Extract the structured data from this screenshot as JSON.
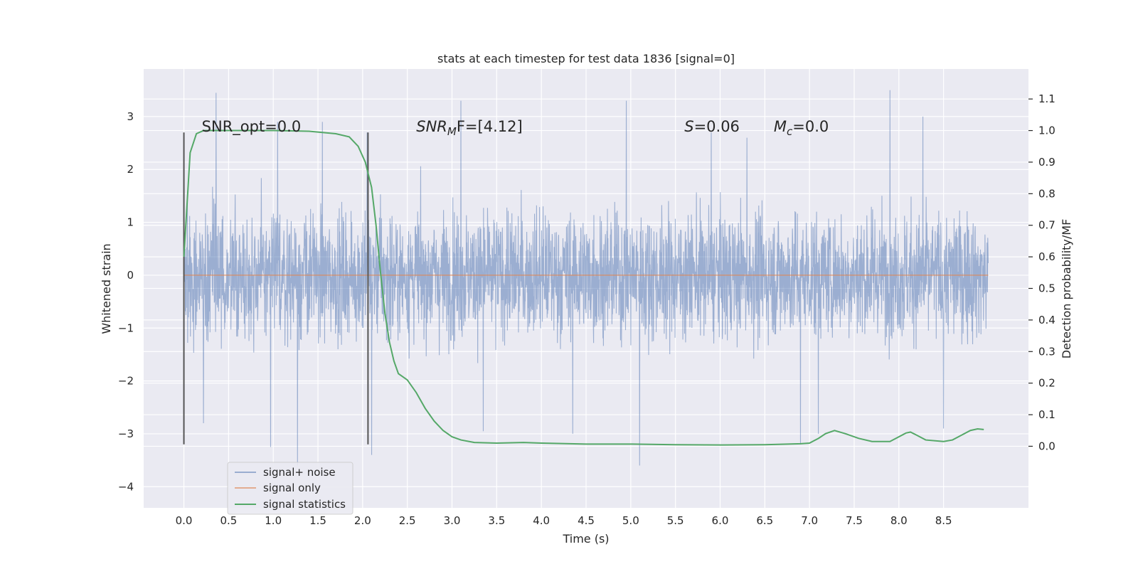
{
  "chart_data": {
    "type": "line",
    "title": "stats at each timestep for test data 1836 [signal=0]",
    "xlabel": "Time (s)",
    "ylabel": "Whitened strain",
    "y2label": "Detection probability/MF",
    "xlim": [
      -0.45,
      9.45
    ],
    "ylim": [
      -4.4,
      3.9
    ],
    "y2lim": [
      -0.195,
      1.195
    ],
    "x_ticks": [
      "0.0",
      "0.5",
      "1.0",
      "1.5",
      "2.0",
      "2.5",
      "3.0",
      "3.5",
      "4.0",
      "4.5",
      "5.0",
      "5.5",
      "6.0",
      "6.5",
      "7.0",
      "7.5",
      "8.0",
      "8.5"
    ],
    "y_ticks": [
      "3",
      "2",
      "1",
      "0",
      "−1",
      "−2",
      "−3",
      "−4"
    ],
    "y2_ticks": [
      "1.1",
      "1.0",
      "0.9",
      "0.8",
      "0.7",
      "0.6",
      "0.5",
      "0.4",
      "0.3",
      "0.2",
      "0.1",
      "0.0"
    ],
    "grid": true,
    "legend_position": "lower-left",
    "colors": {
      "plot_bg": "#eaeaf2",
      "grid": "#ffffff",
      "noise": "#4c72b0",
      "signal": "#dd8452",
      "stats": "#55a868",
      "vline": "#555555",
      "text": "#262626"
    },
    "annotations": [
      {
        "text": "SNR_opt=0.0",
        "x": 0.2
      },
      {
        "text": "SNR",
        "sub": "M",
        "after": "F=[4.12]",
        "italic": true,
        "x": 2.6
      },
      {
        "text": "S",
        "after": "=0.06",
        "italic": true,
        "x": 5.6
      },
      {
        "text": "M",
        "sub": "c",
        "after": "=0.0",
        "italic": true,
        "x": 6.6
      }
    ],
    "vlines": [
      {
        "x": 0.0,
        "y_from": -3.2,
        "y_to": 2.7
      },
      {
        "x": 2.06,
        "y_from": -3.2,
        "y_to": 2.7
      }
    ],
    "series": [
      {
        "name": "signal+ noise",
        "kind": "noise",
        "x_range": [
          0.0,
          9.0
        ],
        "typical_amplitude": [
          -1.5,
          1.5
        ],
        "peaks_high": [
          [
            0.36,
            3.45
          ],
          [
            1.05,
            2.9
          ],
          [
            1.55,
            2.9
          ],
          [
            2.05,
            2.7
          ],
          [
            3.1,
            3.3
          ],
          [
            4.95,
            3.3
          ],
          [
            7.9,
            3.5
          ],
          [
            8.27,
            3.0
          ],
          [
            6.3,
            2.6
          ],
          [
            5.9,
            2.7
          ]
        ],
        "peaks_low": [
          [
            1.27,
            -3.6
          ],
          [
            0.97,
            -3.25
          ],
          [
            2.1,
            -3.4
          ],
          [
            5.1,
            -3.6
          ],
          [
            3.35,
            -2.95
          ],
          [
            4.35,
            -3.0
          ],
          [
            6.9,
            -3.2
          ],
          [
            7.1,
            -3.0
          ],
          [
            0.22,
            -2.8
          ],
          [
            8.5,
            -2.9
          ]
        ]
      },
      {
        "name": "signal only",
        "kind": "line",
        "x": [
          0.0,
          9.0
        ],
        "y": [
          0.0,
          0.0
        ]
      },
      {
        "name": "signal statistics",
        "kind": "line",
        "axis": "right",
        "x": [
          0.0,
          0.07,
          0.14,
          0.22,
          0.35,
          0.6,
          1.0,
          1.4,
          1.7,
          1.85,
          1.95,
          2.03,
          2.1,
          2.15,
          2.2,
          2.25,
          2.3,
          2.35,
          2.4,
          2.5,
          2.6,
          2.7,
          2.8,
          2.9,
          3.0,
          3.1,
          3.25,
          3.5,
          3.8,
          4.0,
          4.5,
          5.0,
          5.5,
          6.0,
          6.5,
          6.9,
          7.0,
          7.1,
          7.18,
          7.28,
          7.4,
          7.55,
          7.7,
          7.9,
          8.0,
          8.08,
          8.13,
          8.2,
          8.3,
          8.5,
          8.6,
          8.7,
          8.8,
          8.88,
          8.95
        ],
        "y": [
          0.6,
          0.93,
          0.99,
          1.0,
          1.0,
          1.0,
          1.0,
          0.998,
          0.99,
          0.98,
          0.95,
          0.9,
          0.82,
          0.7,
          0.55,
          0.42,
          0.33,
          0.27,
          0.23,
          0.21,
          0.17,
          0.12,
          0.08,
          0.05,
          0.03,
          0.02,
          0.012,
          0.01,
          0.012,
          0.01,
          0.007,
          0.007,
          0.005,
          0.004,
          0.005,
          0.008,
          0.01,
          0.025,
          0.04,
          0.05,
          0.04,
          0.025,
          0.015,
          0.015,
          0.03,
          0.042,
          0.045,
          0.035,
          0.02,
          0.015,
          0.02,
          0.035,
          0.05,
          0.055,
          0.053
        ]
      }
    ]
  }
}
